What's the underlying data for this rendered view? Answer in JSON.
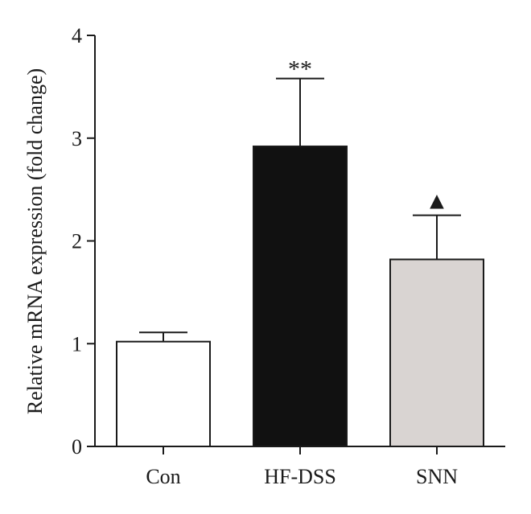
{
  "chart_data": {
    "type": "bar",
    "ylabel": "Relative mRNA expression (fold change)",
    "ylim": [
      0,
      4
    ],
    "yticks": [
      0,
      1,
      2,
      3,
      4
    ],
    "categories": [
      "Con",
      "HF-DSS",
      "SNN"
    ],
    "values": [
      1.02,
      2.92,
      1.82
    ],
    "errors": [
      0.09,
      0.66,
      0.43
    ],
    "annotations": [
      "",
      "**",
      "▲"
    ],
    "colors": {
      "bar_fills": [
        "#ffffff",
        "#111111",
        "#d9d4d2"
      ],
      "stroke": "#1a1a1a"
    },
    "grid": false,
    "legend": "none"
  }
}
